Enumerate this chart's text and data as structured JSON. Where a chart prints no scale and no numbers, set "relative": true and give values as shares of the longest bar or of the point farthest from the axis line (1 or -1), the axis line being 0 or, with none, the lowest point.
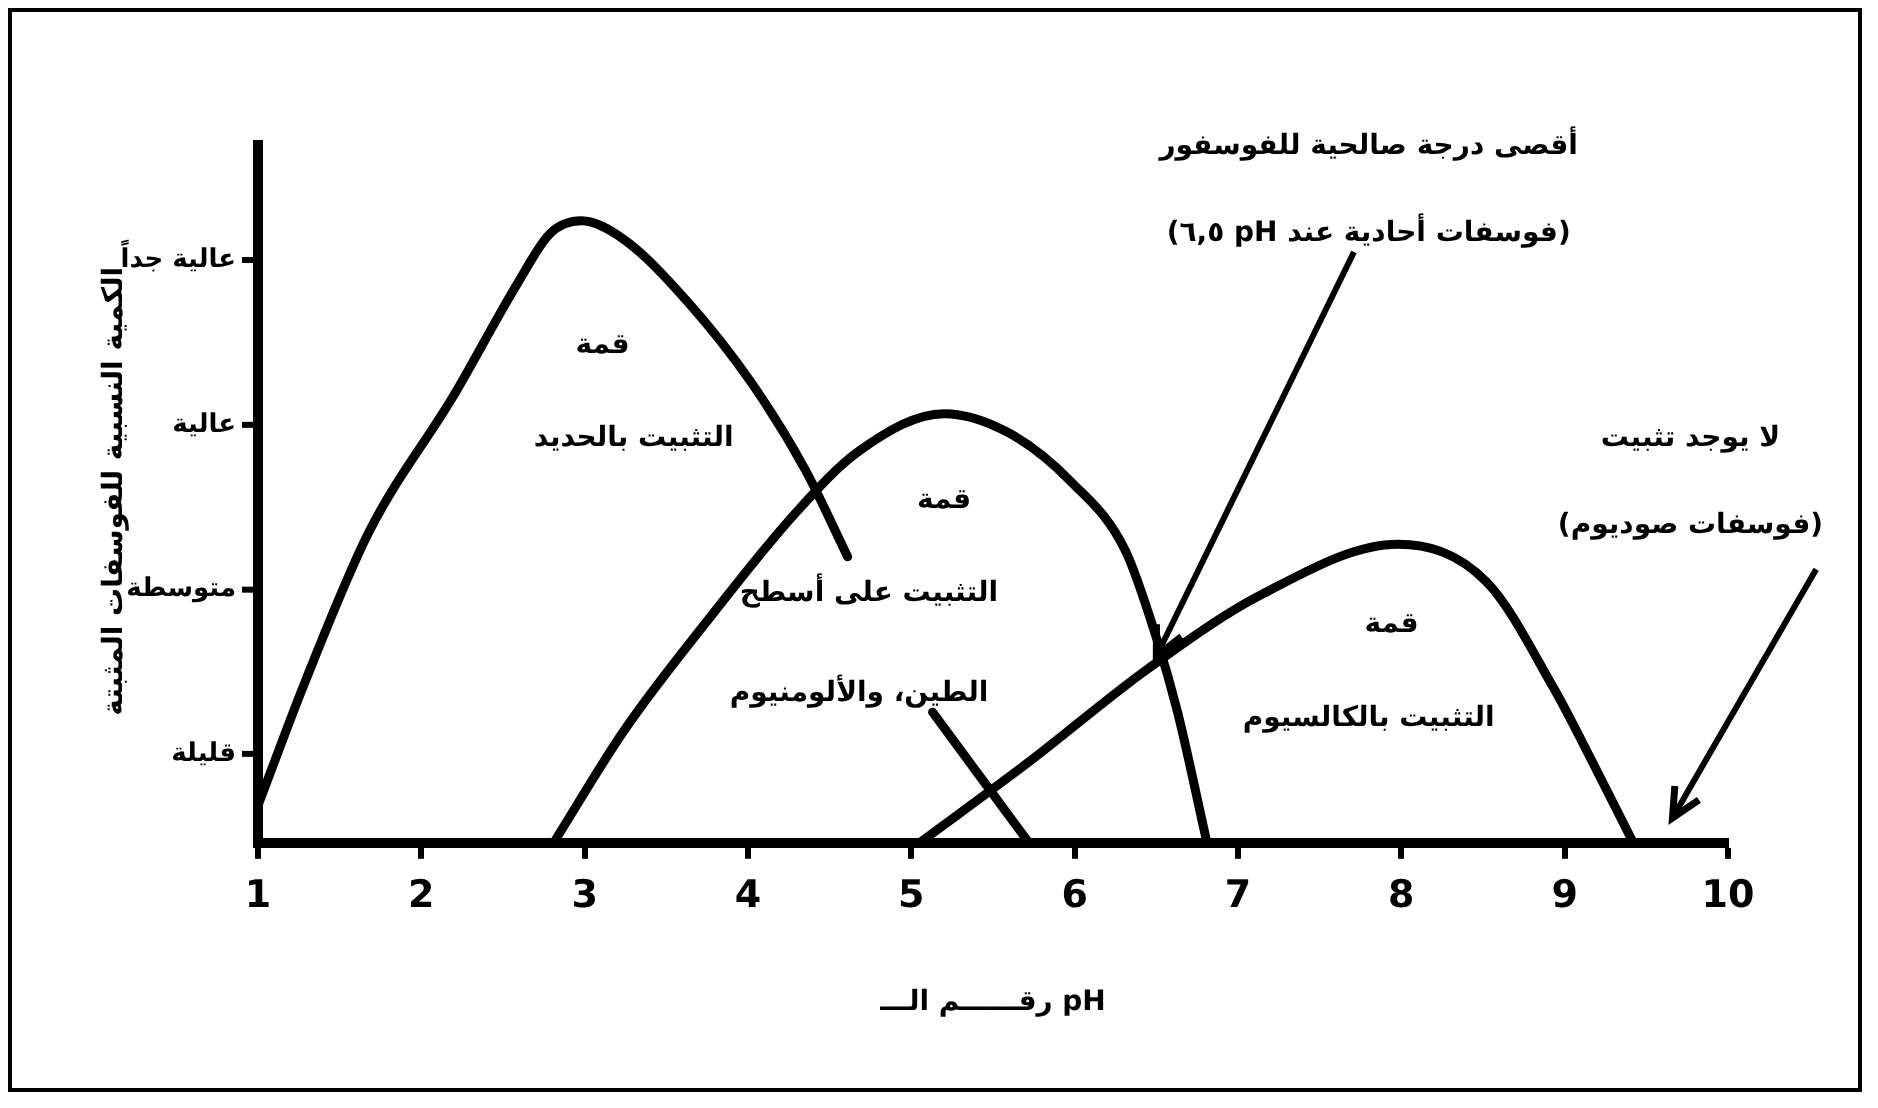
{
  "chart_data": {
    "type": "line",
    "xlabel": "رقــــــم الـــ pH",
    "ylabel": "الكمية النسبية للفوسفات المثبتة",
    "xlim": [
      1,
      10
    ],
    "xticks": [
      1,
      2,
      3,
      4,
      5,
      6,
      7,
      8,
      9,
      10
    ],
    "relative": true,
    "grid": false,
    "legend": false,
    "marker": "none",
    "line_style": "solid",
    "series": [
      {
        "color": "#000000",
        "x": [
          1.0,
          1.29,
          1.68,
          2.2,
          2.59,
          2.79,
          2.98,
          3.24,
          3.63,
          4.02,
          4.35,
          4.61,
          null,
          5.13,
          5.72
        ],
        "values": [
          0.06,
          0.26,
          0.5,
          0.72,
          0.9,
          0.98,
          1,
          0.97,
          0.87,
          0.74,
          0.6,
          0.46,
          null,
          0.21,
          0
        ]
      },
      {
        "color": "#000000",
        "x": [
          2.81,
          3.24,
          3.76,
          4.29,
          4.68,
          5.2,
          5.59,
          5.98,
          6.31,
          6.5,
          6.63,
          6.81
        ],
        "values": [
          0,
          0.18,
          0.36,
          0.53,
          0.63,
          0.69,
          0.66,
          0.58,
          0.47,
          0.33,
          0.21,
          0
        ]
      },
      {
        "color": "#000000",
        "x": [
          5.05,
          5.72,
          6.45,
          7.15,
          7.98,
          8.52,
          8.93,
          9.17,
          9.42
        ],
        "values": [
          0,
          0.13,
          0.28,
          0.4,
          0.48,
          0.42,
          0.25,
          0.13,
          0
        ]
      }
    ],
    "annotations": [
      "قليلة",
      "متوسطة",
      "عالية",
      "عالية جداً",
      "قمة",
      "التثبيت بالحديد",
      "قمة",
      "التثبيت على أسطح",
      "الطين، والألومنيوم",
      "قمة",
      "التثبيت بالكالسيوم",
      "أقصى درجة صالحية للفوسفور",
      {
        "text": "(فوسفات أحادية عند pH ٦,٥)",
        "x": 6.5,
        "y": 0.3
      },
      "لا يوجد تثبيت",
      "(فوسفات صوديوم)"
    ]
  }
}
